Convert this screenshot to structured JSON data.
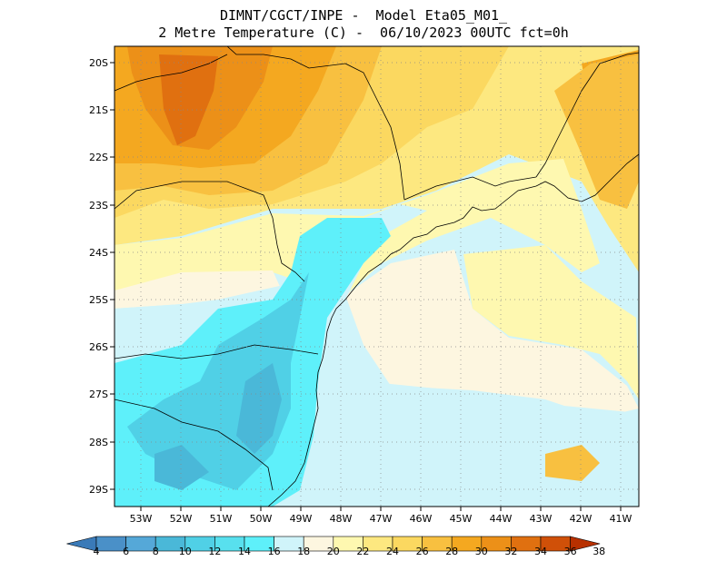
{
  "title": {
    "line1": "DIMNT/CGCT/INPE -  Model Eta05_M01_",
    "line2": "2 Metre Temperature (C) -  06/10/2023 00UTC fct=0h"
  },
  "map": {
    "lat_labels": [
      "20S",
      "21S",
      "22S",
      "23S",
      "24S",
      "25S",
      "26S",
      "27S",
      "28S",
      "29S"
    ],
    "lon_labels": [
      "53W",
      "52W",
      "51W",
      "50W",
      "49W",
      "48W",
      "47W",
      "46W",
      "45W",
      "44W",
      "43W",
      "42W",
      "41W"
    ],
    "lat_range": [
      -29.5,
      -19.4
    ],
    "lon_range": [
      -53.5,
      -40.3
    ]
  },
  "colorbar": {
    "levels": [
      "4",
      "6",
      "8",
      "10",
      "12",
      "14",
      "16",
      "18",
      "20",
      "22",
      "24",
      "26",
      "28",
      "30",
      "32",
      "34",
      "36",
      "38"
    ],
    "colors": [
      "#3a7ab8",
      "#4a90c8",
      "#55a8d8",
      "#4ab8d8",
      "#50d0e6",
      "#58e0ee",
      "#5ef0fa",
      "#d0f4fa",
      "#fdf6e0",
      "#fef8b0",
      "#fde880",
      "#fbd860",
      "#f8c040",
      "#f4a820",
      "#ec9018",
      "#e07010",
      "#d05008",
      "#b83000"
    ]
  },
  "field_colors": {
    "t8_10": "#3a7ab8",
    "t10_12": "#55a8d8",
    "t12_14": "#4ab8d8",
    "t14_16": "#50d0e6",
    "t16_18": "#5ef0fa",
    "t18_20": "#d0f4fa",
    "t20_22": "#fdf6e0",
    "t22_24": "#fef8b0",
    "t24_26": "#fde880",
    "t26_28": "#fbd860",
    "t28_30": "#f8c040",
    "t30_32": "#f4a820",
    "t32_34": "#ec9018",
    "t34_36": "#e07010",
    "t36_38": "#d05008"
  }
}
